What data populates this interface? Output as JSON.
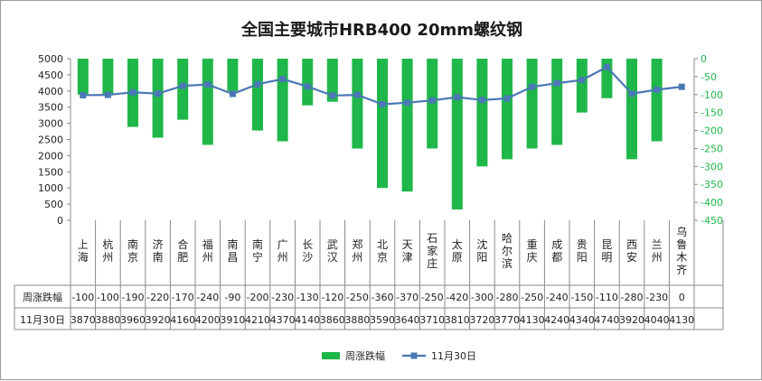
{
  "chart_data": {
    "type": "bar",
    "title": "全国主要城市HRB400 20mm螺纹钢",
    "categories": [
      "上海",
      "杭州",
      "南京",
      "济南",
      "合肥",
      "福州",
      "南昌",
      "南宁",
      "广州",
      "长沙",
      "武汉",
      "郑州",
      "北京",
      "天津",
      "石家庄",
      "太原",
      "沈阳",
      "哈尔滨",
      "重庆",
      "成都",
      "贵阳",
      "昆明",
      "西安",
      "兰州",
      "乌鲁木齐"
    ],
    "series": [
      {
        "name": "周涨跌幅",
        "type": "bar",
        "axis": "right",
        "color": "#1fb74a",
        "values": [
          -100,
          -100,
          -190,
          -220,
          -170,
          -240,
          -90,
          -200,
          -230,
          -130,
          -120,
          -250,
          -360,
          -370,
          -250,
          -420,
          -300,
          -280,
          -250,
          -240,
          -150,
          -110,
          -280,
          -230,
          0
        ]
      },
      {
        "name": "11月30日",
        "type": "line",
        "axis": "left",
        "color": "#4a78b5",
        "values": [
          3870,
          3880,
          3960,
          3920,
          4160,
          4200,
          3910,
          4210,
          4370,
          4140,
          3860,
          3880,
          3590,
          3640,
          3710,
          3810,
          3720,
          3770,
          4130,
          4240,
          4340,
          4740,
          3920,
          4040,
          4130
        ]
      }
    ],
    "left_axis": {
      "min": 0,
      "max": 5000,
      "ticks": [
        0,
        500,
        1000,
        1500,
        2000,
        2500,
        3000,
        3500,
        4000,
        4500,
        5000
      ]
    },
    "right_axis": {
      "min": -450,
      "max": 0,
      "ticks": [
        0,
        -50,
        -100,
        -150,
        -200,
        -250,
        -300,
        -350,
        -400,
        -450
      ]
    },
    "table_labels": {
      "row1": "周涨跌幅",
      "row2": "11月30日"
    },
    "legend_placement": "bottom"
  }
}
